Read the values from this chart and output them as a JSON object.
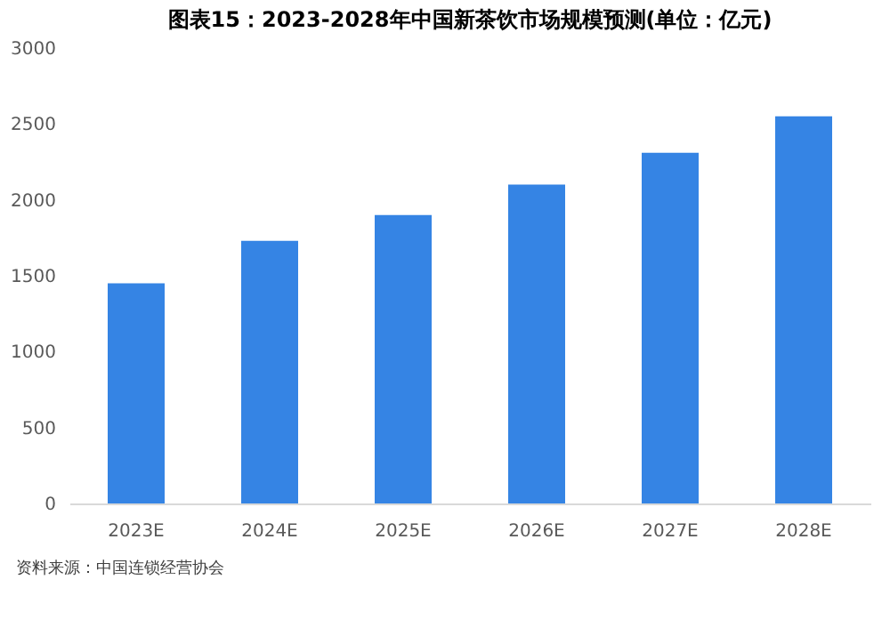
{
  "chart_data": {
    "type": "bar",
    "title": "图表15：2023-2028年中国新茶饮市场规模预测(单位：亿元)",
    "categories": [
      "2023E",
      "2024E",
      "2025E",
      "2026E",
      "2027E",
      "2028E"
    ],
    "values": [
      1450,
      1730,
      1900,
      2100,
      2310,
      2550
    ],
    "color": "#3584e4",
    "ylim": [
      0,
      3000
    ],
    "yticks": [
      0,
      500,
      1000,
      1500,
      2000,
      2500,
      3000
    ],
    "grid": false,
    "annotations": [
      "资料来源：中国连锁经营协会"
    ]
  }
}
